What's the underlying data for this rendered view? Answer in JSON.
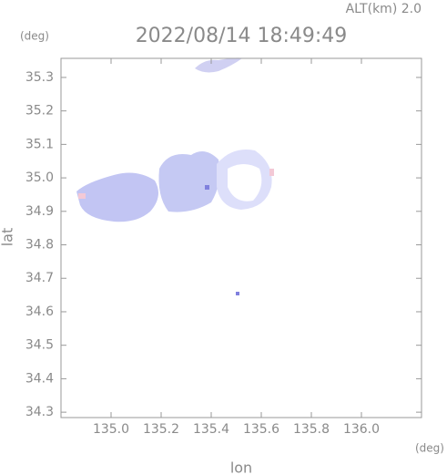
{
  "chart_data": {
    "type": "map",
    "title": "2022/08/14 18:49:49",
    "subtitle": "ALT(km) 2.0",
    "x_label": "lon",
    "y_label": "lat",
    "x_unit": "(deg)",
    "y_unit": "(deg)",
    "xlim": [
      134.8,
      136.24
    ],
    "ylim": [
      34.284,
      35.357
    ],
    "xticks": [
      {
        "value": 135,
        "label": "135.0"
      },
      135.2,
      135.4,
      135.6,
      135.8,
      {
        "value": 136,
        "label": "136.0"
      }
    ],
    "yticks": [
      34.3,
      34.4,
      34.5,
      34.6,
      34.7,
      34.8,
      34.9,
      {
        "value": 35,
        "label": "35.0"
      },
      35.1,
      35.2,
      35.3
    ]
  }
}
